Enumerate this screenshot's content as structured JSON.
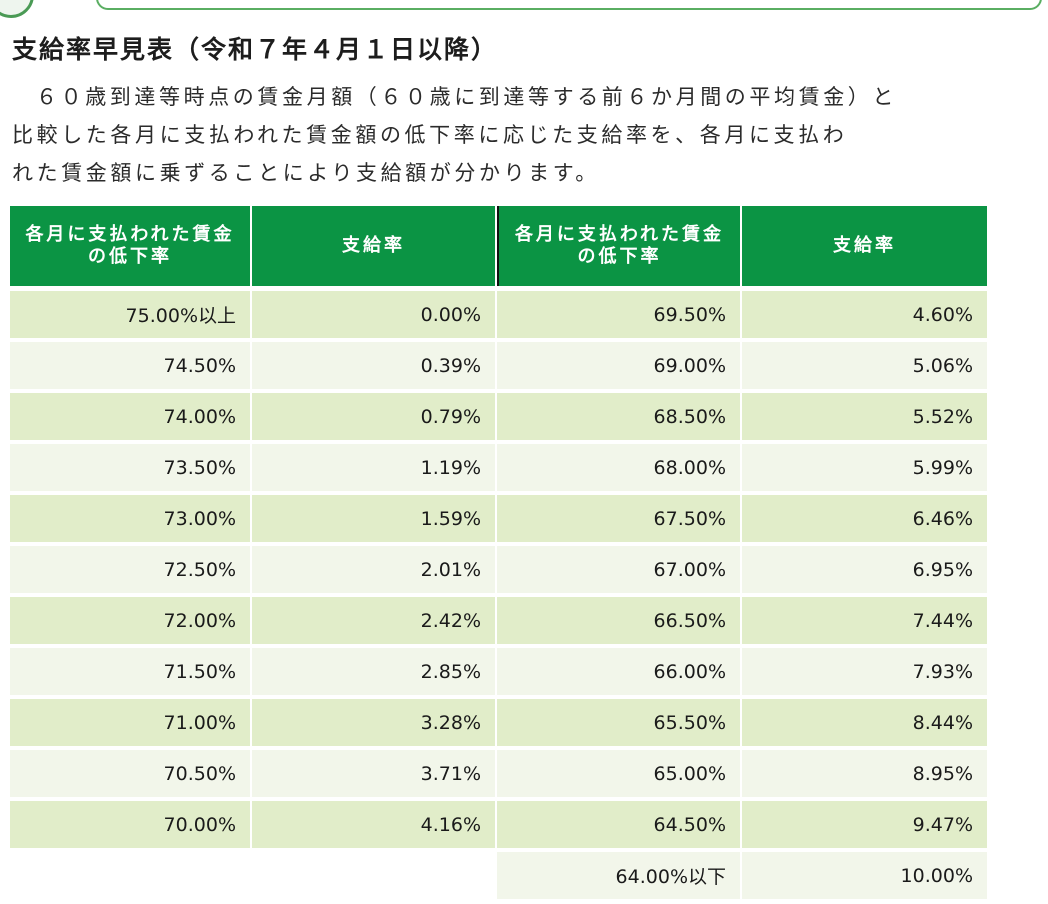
{
  "title": "支給率早見表（令和７年４月１日以降）",
  "description": {
    "line1": "６０歳到達等時点の賃金月額（６０歳に到達等する前６か月間の平均賃金）と",
    "line2": "比較した各月に支払われた賃金額の低下率に応じた支給率を、各月に支払わ",
    "line3": "れた賃金額に乗ずることにより支給額が分かります。"
  },
  "table": {
    "headers": {
      "c1": "各月に支払われた賃金の低下率",
      "c2": "支給率",
      "c3": "各月に支払われた賃金の低下率",
      "c4": "支給率"
    },
    "rows": [
      [
        "75.00%以上",
        "0.00%",
        "69.50%",
        "4.60%"
      ],
      [
        "74.50%",
        "0.39%",
        "69.00%",
        "5.06%"
      ],
      [
        "74.00%",
        "0.79%",
        "68.50%",
        "5.52%"
      ],
      [
        "73.50%",
        "1.19%",
        "68.00%",
        "5.99%"
      ],
      [
        "73.00%",
        "1.59%",
        "67.50%",
        "6.46%"
      ],
      [
        "72.50%",
        "2.01%",
        "67.00%",
        "6.95%"
      ],
      [
        "72.00%",
        "2.42%",
        "66.50%",
        "7.44%"
      ],
      [
        "71.50%",
        "2.85%",
        "66.00%",
        "7.93%"
      ],
      [
        "71.00%",
        "3.28%",
        "65.50%",
        "8.44%"
      ],
      [
        "70.50%",
        "3.71%",
        "65.00%",
        "8.95%"
      ],
      [
        "70.00%",
        "4.16%",
        "64.50%",
        "9.47%"
      ]
    ],
    "last_row": [
      "64.00%以下",
      "10.00%"
    ]
  },
  "colors": {
    "header_bg": "#0b9444",
    "row_dark": "#e1edc9",
    "row_light": "#f2f6ea"
  }
}
